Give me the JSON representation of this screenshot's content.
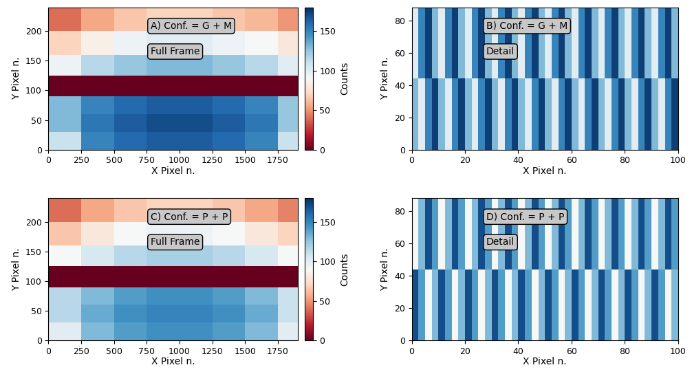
{
  "chart_data": [
    {
      "type": "heatmap",
      "annotations": [
        "A) Conf. = G + M",
        "Full Frame"
      ],
      "x_label": "X Pixel n.",
      "y_label": "Y Pixel n.",
      "color": "RdBu",
      "xlim": [
        0,
        1900
      ],
      "ylim": [
        0,
        240
      ],
      "xticks": [
        0,
        250,
        500,
        750,
        1000,
        1250,
        1500,
        1750
      ],
      "yticks": [
        0,
        50,
        100,
        150,
        200
      ],
      "x_edges": [
        0,
        250,
        500,
        750,
        1000,
        1250,
        1500,
        1750,
        1900
      ],
      "y_edges": [
        0,
        30,
        60,
        90,
        125,
        160,
        200,
        240
      ],
      "cells": [
        [
          110,
          150,
          160,
          165,
          165,
          160,
          150,
          110
        ],
        [
          130,
          155,
          165,
          170,
          170,
          165,
          155,
          125
        ],
        [
          130,
          150,
          160,
          165,
          165,
          160,
          150,
          125
        ],
        [
          0,
          0,
          0,
          0,
          0,
          0,
          0,
          0
        ],
        [
          95,
          115,
          125,
          130,
          130,
          125,
          115,
          100
        ],
        [
          70,
          85,
          95,
          100,
          100,
          95,
          90,
          80
        ],
        [
          40,
          55,
          65,
          70,
          70,
          65,
          60,
          50
        ]
      ],
      "colorbar": {
        "label": "Counts",
        "range": [
          0,
          180
        ],
        "ticks": [
          0,
          50,
          100,
          150
        ]
      }
    },
    {
      "type": "heatmap",
      "annotations": [
        "B) Conf. = G + M",
        "Detail"
      ],
      "x_label": "X Pixel n.",
      "y_label": "Y Pixel n.",
      "color": "RdBu",
      "xlim": [
        0,
        100
      ],
      "ylim": [
        0,
        88
      ],
      "xticks": [
        0,
        20,
        40,
        60,
        80,
        100
      ],
      "yticks": [
        0,
        20,
        40,
        60,
        80
      ],
      "x_edges": [
        0,
        2.5,
        5,
        7.5,
        10,
        12.5,
        15,
        17.5,
        20,
        22.5,
        25,
        27.5,
        30,
        32.5,
        35,
        37.5,
        40,
        42.5,
        45,
        47.5,
        50,
        52.5,
        55,
        57.5,
        60,
        62.5,
        65,
        67.5,
        70,
        72.5,
        75,
        77.5,
        80,
        82.5,
        85,
        87.5,
        90,
        92.5,
        95,
        97.5,
        100
      ],
      "y_edges": [
        0,
        44,
        88
      ],
      "cells": [
        [
          130,
          100,
          150,
          175,
          130,
          100,
          150,
          175,
          130,
          100,
          150,
          175,
          130,
          100,
          150,
          175,
          130,
          100,
          150,
          175,
          130,
          100,
          150,
          175,
          130,
          100,
          150,
          175,
          130,
          100,
          150,
          175,
          130,
          100,
          150,
          175,
          130,
          100,
          150,
          175
        ],
        [
          100,
          150,
          175,
          130,
          100,
          150,
          175,
          130,
          100,
          150,
          175,
          130,
          100,
          150,
          175,
          130,
          100,
          150,
          175,
          130,
          100,
          150,
          175,
          130,
          100,
          150,
          175,
          130,
          100,
          150,
          175,
          130,
          100,
          150,
          175,
          130,
          100,
          150,
          175,
          130
        ]
      ],
      "color_range": [
        0,
        180
      ]
    },
    {
      "type": "heatmap",
      "annotations": [
        "C) Conf. = P + P",
        "Full Frame"
      ],
      "x_label": "X Pixel n.",
      "y_label": "Y Pixel n.",
      "color": "RdBu",
      "xlim": [
        0,
        1900
      ],
      "ylim": [
        0,
        240
      ],
      "xticks": [
        0,
        250,
        500,
        750,
        1000,
        1250,
        1500,
        1750
      ],
      "yticks": [
        0,
        50,
        100,
        150,
        200
      ],
      "x_edges": [
        0,
        250,
        500,
        750,
        1000,
        1250,
        1500,
        1750,
        1900
      ],
      "y_edges": [
        0,
        30,
        60,
        90,
        125,
        160,
        200,
        240
      ],
      "cells": [
        [
          100,
          130,
          140,
          145,
          145,
          140,
          130,
          100
        ],
        [
          115,
          135,
          145,
          150,
          150,
          145,
          135,
          110
        ],
        [
          115,
          130,
          140,
          145,
          145,
          140,
          130,
          110
        ],
        [
          0,
          0,
          0,
          0,
          0,
          0,
          0,
          0
        ],
        [
          90,
          105,
          115,
          120,
          120,
          115,
          105,
          90
        ],
        [
          65,
          80,
          90,
          95,
          95,
          90,
          80,
          70
        ],
        [
          40,
          55,
          65,
          70,
          70,
          65,
          55,
          45
        ]
      ],
      "colorbar": {
        "label": "Counts",
        "range": [
          0,
          180
        ],
        "ticks": [
          0,
          50,
          100,
          150
        ]
      }
    },
    {
      "type": "heatmap",
      "annotations": [
        "D) Conf. = P + P",
        "Detail"
      ],
      "x_label": "X Pixel n.",
      "y_label": "Y Pixel n.",
      "color": "RdBu",
      "xlim": [
        0,
        100
      ],
      "ylim": [
        0,
        88
      ],
      "xticks": [
        0,
        20,
        40,
        60,
        80,
        100
      ],
      "yticks": [
        0,
        20,
        40,
        60,
        80
      ],
      "x_edges": [
        0,
        2.5,
        5,
        7.5,
        10,
        12.5,
        15,
        17.5,
        20,
        22.5,
        25,
        27.5,
        30,
        32.5,
        35,
        37.5,
        40,
        42.5,
        45,
        47.5,
        50,
        52.5,
        55,
        57.5,
        60,
        62.5,
        65,
        67.5,
        70,
        72.5,
        75,
        77.5,
        80,
        82.5,
        85,
        87.5,
        90,
        92.5,
        95,
        97.5,
        100
      ],
      "y_edges": [
        0,
        44,
        88
      ],
      "cells": [
        [
          170,
          140,
          90,
          130,
          170,
          140,
          90,
          130,
          170,
          140,
          90,
          130,
          170,
          140,
          90,
          130,
          170,
          140,
          90,
          130,
          170,
          140,
          90,
          130,
          170,
          140,
          90,
          130,
          170,
          140,
          90,
          130,
          170,
          140,
          90,
          130,
          170,
          140,
          90,
          130
        ],
        [
          90,
          130,
          170,
          140,
          90,
          130,
          170,
          140,
          90,
          130,
          170,
          140,
          90,
          130,
          170,
          140,
          90,
          130,
          170,
          140,
          90,
          130,
          170,
          140,
          90,
          130,
          170,
          140,
          90,
          130,
          170,
          140,
          90,
          130,
          170,
          140,
          90,
          130,
          170,
          140
        ]
      ],
      "color_range": [
        0,
        180
      ]
    }
  ]
}
